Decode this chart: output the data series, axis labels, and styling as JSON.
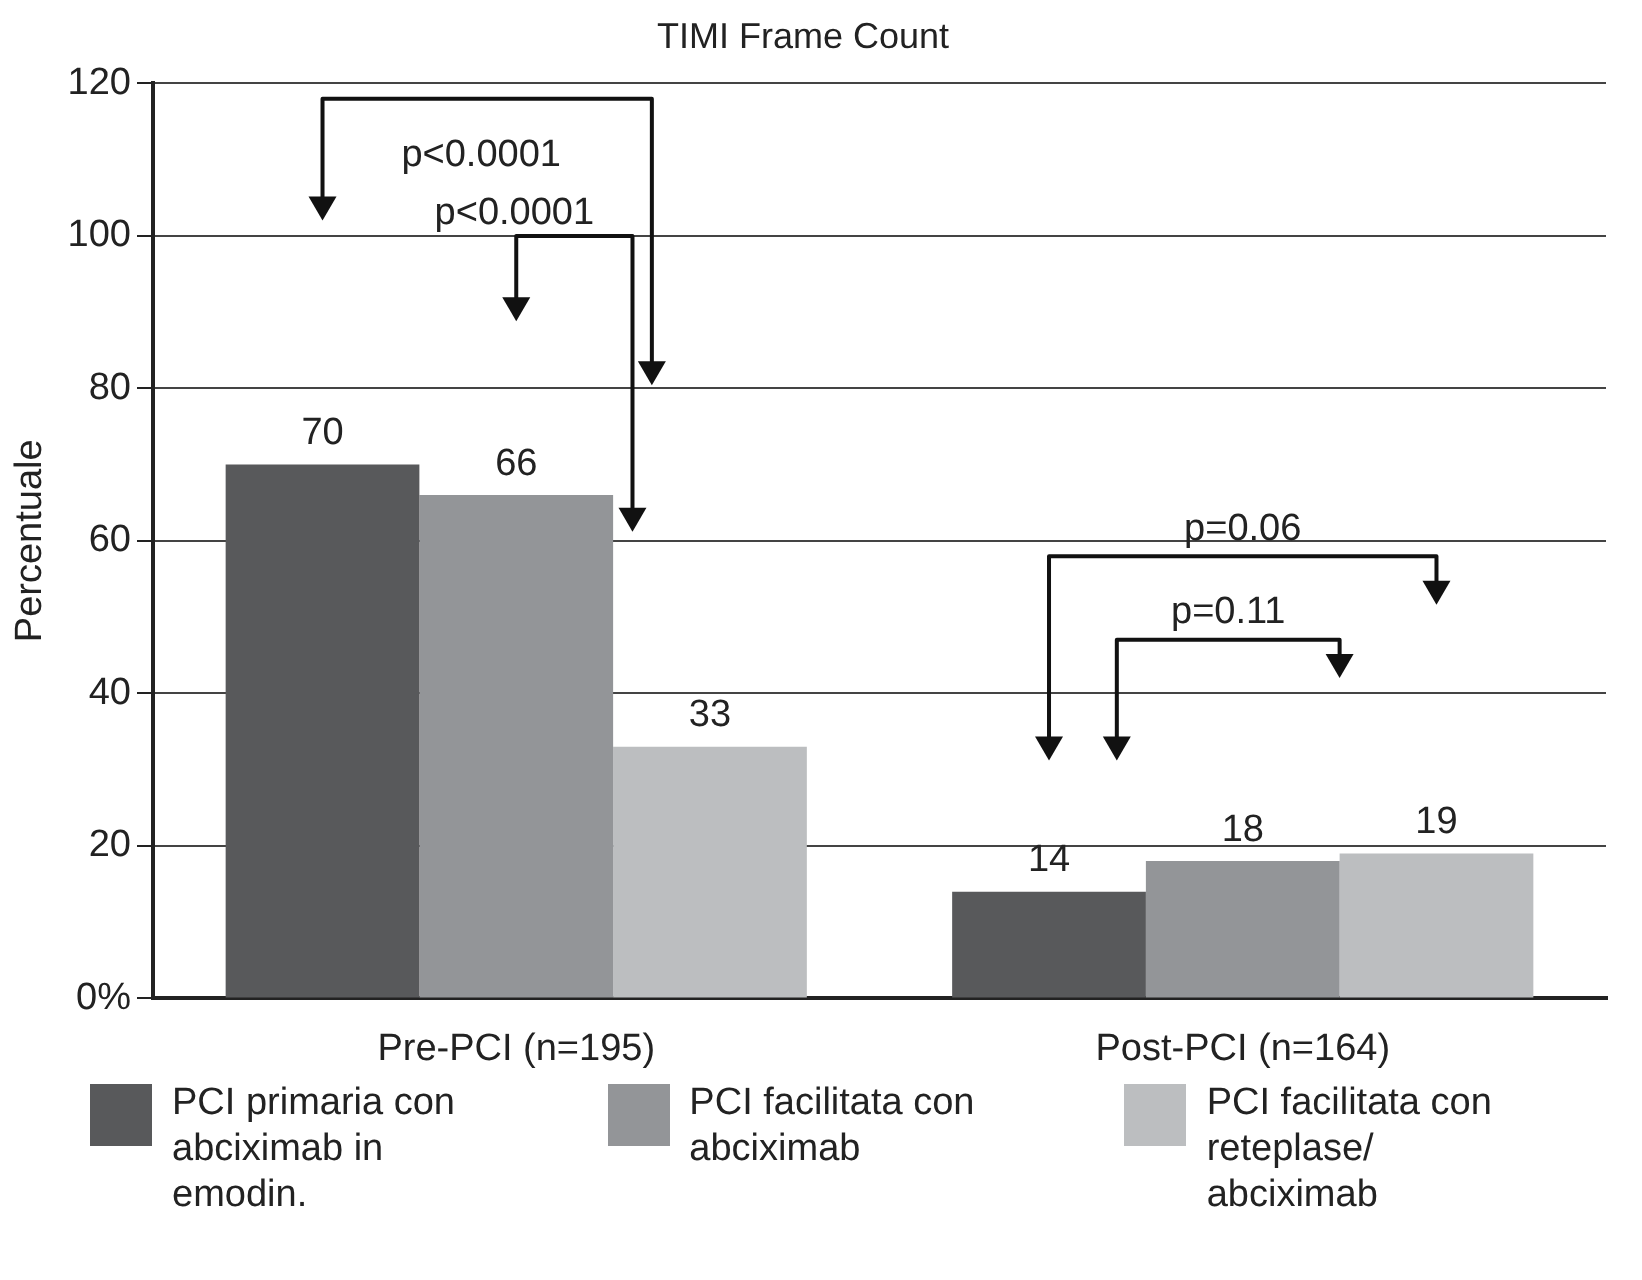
{
  "chart_data": {
    "type": "bar",
    "title": "TIMI Frame Count",
    "ylabel": "Percentuale",
    "categories": [
      "Pre-PCI (n=195)",
      "Post-PCI (n=164)"
    ],
    "series": [
      {
        "name": "PCI primaria con abciximab in emodin.",
        "color": "#58595b",
        "values": [
          70,
          14
        ]
      },
      {
        "name": "PCI facilitata con abciximab",
        "color": "#939598",
        "values": [
          66,
          18
        ]
      },
      {
        "name": "PCI facilitata con reteplase/ abciximab",
        "color": "#bcbec0",
        "values": [
          33,
          19
        ]
      }
    ],
    "ylim": [
      0,
      120
    ],
    "yticks": [
      {
        "value": 0,
        "label": "0%"
      },
      20,
      40,
      60,
      80,
      100,
      120
    ],
    "grid": "y",
    "legend": "bottom",
    "data_labels": true,
    "annotations": [
      "p<0.0001",
      "p<0.0001",
      "p=0.06",
      "p=0.11"
    ]
  }
}
